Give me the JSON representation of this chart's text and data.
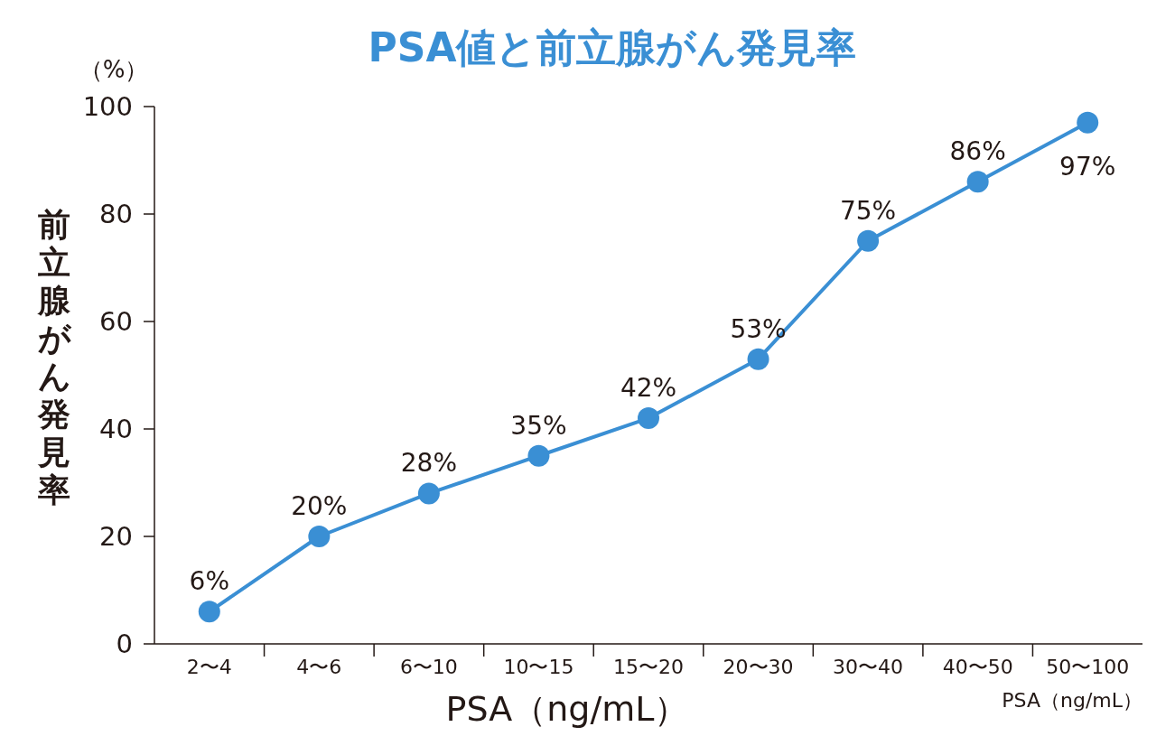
{
  "chart_data": {
    "type": "line",
    "title": "PSA値と前立腺がん発見率",
    "xlabel": "PSA（ng/mL）",
    "ylabel": "前立腺がん発見率",
    "annotations": [
      "（%）",
      "PSA（ng/mL）"
    ],
    "categories": [
      "2〜4",
      "4〜6",
      "6〜10",
      "10〜15",
      "15〜20",
      "20〜30",
      "30〜40",
      "40〜50",
      "50〜100"
    ],
    "series": [
      {
        "color": "#3a8fd4",
        "values": [
          6,
          20,
          28,
          35,
          42,
          53,
          75,
          86,
          97
        ],
        "value_labels": [
          "6%",
          "20%",
          "28%",
          "35%",
          "42%",
          "53%",
          "75%",
          "86%",
          "97%"
        ]
      }
    ],
    "ylim": [
      0,
      100
    ],
    "yticks": [
      0,
      20,
      40,
      60,
      80,
      100
    ],
    "marker": "circle",
    "line_style": "solid",
    "grid": false
  }
}
